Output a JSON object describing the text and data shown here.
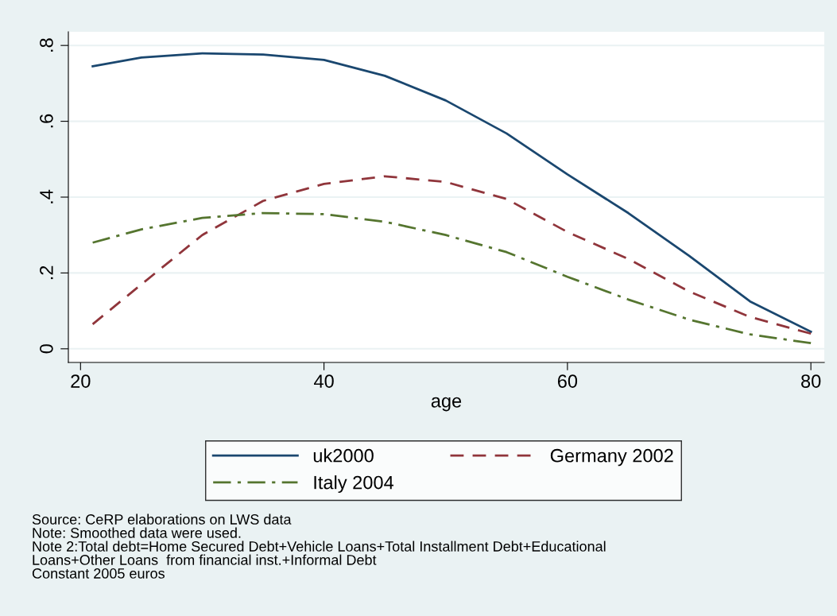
{
  "chart_data": {
    "type": "line",
    "xlabel": "age",
    "x": [
      21,
      25,
      30,
      35,
      40,
      45,
      50,
      55,
      60,
      65,
      70,
      75,
      80
    ],
    "series": [
      {
        "name": "uk2000",
        "color": "#1a476f",
        "line_style": "solid",
        "values": [
          0.745,
          0.768,
          0.779,
          0.776,
          0.762,
          0.72,
          0.655,
          0.568,
          0.46,
          0.358,
          0.245,
          0.125,
          0.045
        ]
      },
      {
        "name": "Germany 2002",
        "color": "#90353b",
        "line_style": "dashed",
        "values": [
          0.065,
          0.17,
          0.3,
          0.39,
          0.435,
          0.455,
          0.44,
          0.395,
          0.308,
          0.237,
          0.151,
          0.084,
          0.04
        ]
      },
      {
        "name": "Italy 2004",
        "color": "#55752f",
        "line_style": "dashdot",
        "values": [
          0.28,
          0.315,
          0.345,
          0.358,
          0.355,
          0.335,
          0.3,
          0.255,
          0.19,
          0.13,
          0.077,
          0.038,
          0.015
        ]
      }
    ],
    "xlim": [
      19,
      81.1
    ],
    "xticks": [
      20,
      40,
      60,
      80
    ],
    "ylim": [
      -0.036,
      0.836
    ],
    "yticks": [
      {
        "value": 0,
        "label": "0"
      },
      {
        "value": 0.2,
        "label": ".2"
      },
      {
        "value": 0.4,
        "label": ".4"
      },
      {
        "value": 0.6,
        "label": ".6"
      },
      {
        "value": 0.8,
        "label": ".8"
      }
    ],
    "grid": "y",
    "legend": "bottom",
    "annotations": [
      "Source: CeRP elaborations on LWS data",
      "Note: Smoothed data were used.",
      "Note 2:Total debt=Home Secured Debt+Vehicle Loans+Total Installment Debt+Educational",
      "Loans+Other Loans  from financial inst.+Informal Debt",
      "Constant 2005 euros"
    ]
  }
}
